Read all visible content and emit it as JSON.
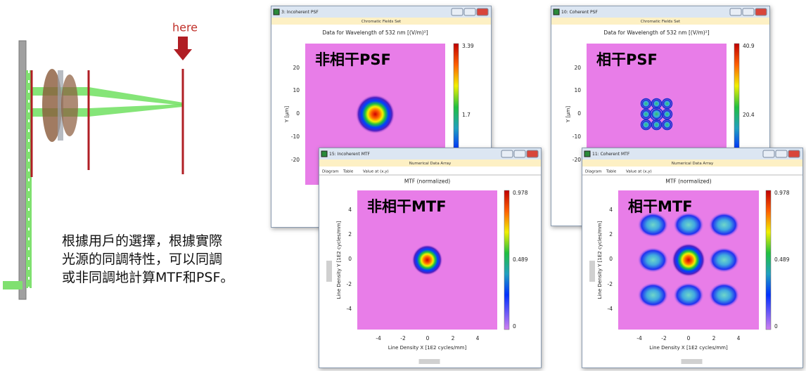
{
  "schematic": {
    "label": "here"
  },
  "caption": {
    "lines": [
      "根據用戶的選擇，根據實際",
      "光源的同調特性，可以同調",
      "或非同調地計算MTF和PSF。"
    ]
  },
  "windows": [
    {
      "title": "3: Incoherent PSF",
      "subtitle": "Chromatic Fields Set",
      "plot_title": "Data for Wavelength of 532 nm  [(V/m)²]",
      "overlay": "非相干PSF",
      "y_label": "Y [µm]",
      "yticks": [
        20,
        10,
        0,
        -10,
        -20
      ],
      "colorbar_ticks": [
        3.39,
        1.7
      ]
    },
    {
      "title": "10: Coherent PSF",
      "subtitle": "Chromatic Fields Set",
      "plot_title": "Data for Wavelength of 532 nm  [(V/m)²]",
      "overlay": "相干PSF",
      "y_label": "Y [µm]",
      "yticks": [
        20,
        10,
        0,
        -10,
        -20
      ],
      "colorbar_ticks": [
        40.9,
        20.4
      ]
    },
    {
      "title": "15: Incoherent MTF",
      "subtitle": "Numerical Data Array",
      "tabs": [
        "Diagram",
        "Table",
        "Value at (x,y)"
      ],
      "plot_title": "MTF (normalized)",
      "overlay": "非相干MTF",
      "x_label": "Line Density X [1E2 cycles/mm]",
      "y_label": "Line Density Y [1E2 cycles/mm]",
      "xticks": [
        -4,
        -2,
        0,
        2,
        4
      ],
      "yticks": [
        4,
        2,
        0,
        -2,
        -4
      ],
      "colorbar_ticks": [
        0.978,
        0.489,
        0
      ]
    },
    {
      "title": "11: Coherent MTF",
      "subtitle": "Numerical Data Array",
      "tabs": [
        "Diagram",
        "Table",
        "Value at (x,y)"
      ],
      "plot_title": "MTF (normalized)",
      "overlay": "相干MTF",
      "x_label": "Line Density X [1E2 cycles/mm]",
      "y_label": "Line Density Y [1E2 cycles/mm]",
      "xticks": [
        -4,
        -2,
        0,
        2,
        4
      ],
      "yticks": [
        4,
        2,
        0,
        -2,
        -4
      ],
      "colorbar_ticks": [
        0.978,
        0.489,
        0
      ]
    }
  ]
}
